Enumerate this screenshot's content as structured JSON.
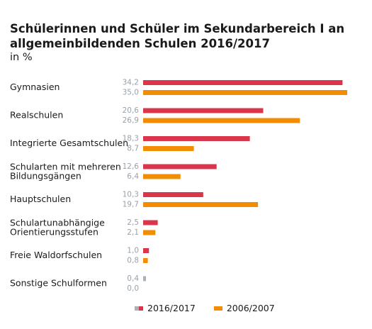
{
  "header": {
    "title": "Schülerinnen und Schüler im Sekundarbereich I an allgemeinbildenden Schulen 2016/2017",
    "subtitle": "in %"
  },
  "legend": {
    "series_a": "2016/2017",
    "series_b": "2006/2007"
  },
  "colors": {
    "series_a": "#d9364c",
    "series_b": "#f28c00",
    "zero_value_bar": "#a9b0b7",
    "value_label": "#9aa1a8"
  },
  "chart_data": {
    "type": "bar",
    "orientation": "horizontal",
    "title": "Schülerinnen und Schüler im Sekundarbereich I an allgemeinbildenden Schulen 2016/2017",
    "subtitle": "in %",
    "categories": [
      [
        "Gymnasien"
      ],
      [
        "Realschulen"
      ],
      [
        "Integrierte Gesamtschulen"
      ],
      [
        "Schularten mit mehreren",
        "Bildungsgängen"
      ],
      [
        "Hauptschulen"
      ],
      [
        "Schulartunabhängige",
        "Orientierungsstufen"
      ],
      [
        "Freie Waldorfschulen"
      ],
      [
        "Sonstige Schulformen"
      ]
    ],
    "series": [
      {
        "name": "2016/2017",
        "values": [
          34.2,
          20.6,
          18.3,
          12.6,
          10.3,
          2.5,
          1.0,
          0.4
        ],
        "labels": [
          "34,2",
          "20,6",
          "18,3",
          "12,6",
          "10,3",
          "2,5",
          "1,0",
          "0,4"
        ]
      },
      {
        "name": "2006/2007",
        "values": [
          35.0,
          26.9,
          8.7,
          6.4,
          19.7,
          2.1,
          0.8,
          0.0
        ],
        "labels": [
          "35,0",
          "26,9",
          "8,7",
          "6,4",
          "19,7",
          "2,1",
          "0,8",
          "0,0"
        ]
      }
    ],
    "xlim": [
      0,
      35
    ],
    "grid": false,
    "legend_position": "bottom"
  }
}
